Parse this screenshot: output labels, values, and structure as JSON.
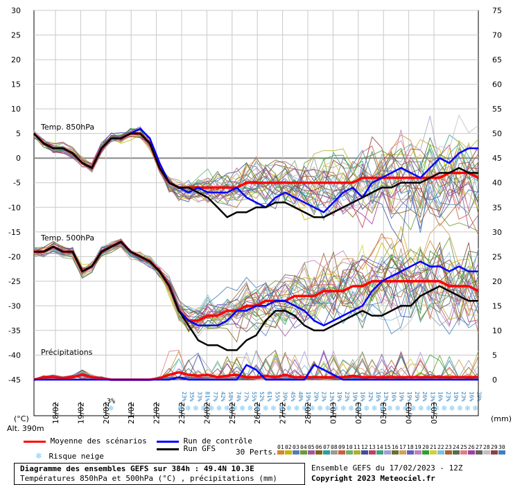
{
  "chart_data": {
    "type": "line",
    "title": "Diagramme des ensembles GEFS sur 384h : 49.4N 10.3E",
    "subtitle": "Températures 850hPa et 500hPa (°C) , précipitations (mm)",
    "left_axis": {
      "label": "(°C)",
      "ticks": [
        30,
        25,
        20,
        15,
        10,
        5,
        0,
        -5,
        -10,
        -15,
        -20,
        -25,
        -30,
        -35,
        -40,
        -45
      ],
      "range": [
        -45,
        30
      ]
    },
    "right_axis": {
      "label": "(mm)",
      "ticks": [
        75,
        70,
        65,
        60,
        55,
        50,
        45,
        40,
        35,
        30,
        25,
        20,
        15,
        10,
        5,
        0
      ],
      "range": [
        0,
        75
      ]
    },
    "altitude_label": "Alt. 390m",
    "x_labels": [
      "18/02",
      "19/02",
      "20/02",
      "21/02",
      "22/02",
      "23/02",
      "24/02",
      "25/02",
      "26/02",
      "27/02",
      "28/02",
      "01/03",
      "02/03",
      "03/03",
      "04/03",
      "05/03"
    ],
    "panel_labels": [
      "Temp. 850hPa",
      "Temp. 500hPa",
      "Précipitations"
    ],
    "series": [
      {
        "name": "Moyenne des scénarios (850hPa)",
        "color": "#ff0000",
        "values": [
          5,
          3,
          2,
          2,
          1,
          -1,
          -2,
          2,
          4,
          4,
          5,
          5,
          3,
          -2,
          -5,
          -6,
          -6,
          -6,
          -6,
          -6,
          -6,
          -6,
          -5,
          -5,
          -5,
          -5,
          -5,
          -5,
          -5,
          -5,
          -5,
          -5,
          -5,
          -5,
          -4,
          -4,
          -4,
          -4,
          -4,
          -4,
          -4,
          -4,
          -4,
          -3,
          -3,
          -3,
          -4
        ]
      },
      {
        "name": "Run de contrôle (850hPa)",
        "color": "#0000ff",
        "values": [
          5,
          3,
          2,
          2,
          1,
          -1,
          -2,
          2,
          4,
          4,
          5,
          6,
          4,
          -1,
          -5,
          -6,
          -7,
          -6,
          -7,
          -7,
          -7,
          -6,
          -8,
          -9,
          -10,
          -8,
          -7,
          -8,
          -9,
          -10,
          -11,
          -9,
          -7,
          -6,
          -8,
          -5,
          -4,
          -3,
          -2,
          -3,
          -4,
          -2,
          0,
          -1,
          1,
          2,
          2
        ]
      },
      {
        "name": "Run GFS (850hPa)",
        "color": "#000000",
        "values": [
          5,
          3,
          2,
          2,
          1,
          -1,
          -2,
          2,
          4,
          4,
          5,
          5,
          3,
          -2,
          -5,
          -6,
          -6,
          -7,
          -8,
          -10,
          -12,
          -11,
          -11,
          -10,
          -10,
          -9,
          -9,
          -10,
          -11,
          -12,
          -12,
          -11,
          -10,
          -9,
          -8,
          -7,
          -6,
          -6,
          -5,
          -5,
          -5,
          -4,
          -3,
          -3,
          -2,
          -3,
          -3
        ]
      },
      {
        "name": "Moyenne des scénarios (500hPa)",
        "color": "#ff0000",
        "values": [
          -19,
          -19,
          -18,
          -19,
          -19,
          -23,
          -22,
          -19,
          -18,
          -17,
          -19,
          -20,
          -21,
          -23,
          -26,
          -31,
          -33,
          -33,
          -32,
          -32,
          -31,
          -31,
          -30,
          -30,
          -29,
          -29,
          -29,
          -28,
          -28,
          -28,
          -27,
          -27,
          -27,
          -26,
          -26,
          -25,
          -25,
          -25,
          -25,
          -25,
          -25,
          -25,
          -25,
          -26,
          -26,
          -26,
          -27
        ]
      },
      {
        "name": "Run de contrôle (500hPa)",
        "color": "#0000ff",
        "values": [
          -19,
          -19,
          -18,
          -19,
          -19,
          -23,
          -22,
          -19,
          -18,
          -17,
          -19,
          -20,
          -21,
          -23,
          -26,
          -31,
          -33,
          -34,
          -34,
          -34,
          -33,
          -31,
          -31,
          -30,
          -30,
          -29,
          -29,
          -30,
          -31,
          -33,
          -34,
          -33,
          -32,
          -31,
          -30,
          -27,
          -25,
          -24,
          -23,
          -22,
          -21,
          -22,
          -22,
          -23,
          -22,
          -23,
          -23
        ]
      },
      {
        "name": "Run GFS (500hPa)",
        "color": "#000000",
        "values": [
          -19,
          -19,
          -18,
          -19,
          -19,
          -23,
          -22,
          -19,
          -18,
          -17,
          -19,
          -20,
          -21,
          -23,
          -26,
          -31,
          -34,
          -37,
          -38,
          -38,
          -39,
          -39,
          -37,
          -36,
          -33,
          -31,
          -31,
          -32,
          -34,
          -35,
          -35,
          -34,
          -33,
          -32,
          -31,
          -32,
          -32,
          -31,
          -30,
          -30,
          -28,
          -27,
          -26,
          -27,
          -28,
          -29,
          -29
        ]
      },
      {
        "name": "Moyenne des scénarios (précipitations)",
        "color": "#ff0000",
        "values": [
          0,
          0.5,
          0.5,
          0.3,
          0.5,
          1,
          0.5,
          0.3,
          0,
          0,
          0,
          0,
          0,
          0.3,
          1,
          1.5,
          1,
          0.8,
          1,
          0.5,
          0.8,
          1,
          0.5,
          0.5,
          0.8,
          0.5,
          1,
          0.5,
          0.5,
          0.5,
          0.5,
          0.5,
          0.5,
          0.8,
          0.5,
          0.5,
          0.5,
          0.5,
          0.5,
          0.5,
          0.5,
          0.5,
          0.5,
          0.5,
          0.5,
          0.5,
          0.5
        ]
      },
      {
        "name": "Run de contrôle (précipitations)",
        "color": "#0000ff",
        "values": [
          0,
          0,
          0,
          0,
          0,
          0,
          0,
          0,
          0,
          0,
          0,
          0,
          0,
          0,
          0,
          0.5,
          0,
          0,
          0,
          0,
          0,
          0,
          3,
          2,
          0,
          0,
          0,
          0,
          0,
          3,
          2,
          1,
          0,
          0,
          0,
          0,
          0,
          0,
          0,
          0,
          0,
          0,
          0,
          0,
          0,
          0,
          0
        ]
      }
    ],
    "snow_risk": {
      "20/02": "3%",
      "values": [
        "23%",
        "35%",
        "33%",
        "81%",
        "77%",
        "42%",
        "58%",
        "74%",
        "77%",
        "55%",
        "52%",
        "61%",
        "55%",
        "39%",
        "45%",
        "48%",
        "19%",
        "29%",
        "23%",
        "13%",
        "19%",
        "23%",
        "19%",
        "16%",
        "32%",
        "16%",
        "13%",
        "16%",
        "19%",
        "19%",
        "29%",
        "26%",
        "13%",
        "16%",
        "23%",
        "19%",
        "23%",
        "16%",
        "29%"
      ]
    }
  },
  "legend": {
    "mean": "Moyenne des scénarios",
    "control": "Run de contrôle",
    "gfs": "Run GFS",
    "snow": "Risque neige",
    "perts_label": "30 Perts.",
    "perts": [
      "01",
      "02",
      "03",
      "04",
      "05",
      "06",
      "07",
      "08",
      "09",
      "10",
      "11",
      "12",
      "13",
      "14",
      "15",
      "16",
      "17",
      "18",
      "19",
      "20",
      "21",
      "22",
      "23",
      "24",
      "25",
      "26",
      "27",
      "28",
      "29",
      "30"
    ],
    "pert_colors": [
      "#d08a2a",
      "#c8b400",
      "#5a7ab4",
      "#6a9a3a",
      "#a05a9a",
      "#806020",
      "#2aa0a0",
      "#9a9a9a",
      "#c86040",
      "#70b070",
      "#b0b030",
      "#4050a0",
      "#c04060",
      "#40a080",
      "#a0a0d0",
      "#707030",
      "#d0a060",
      "#6060c0",
      "#c080c0",
      "#30a030",
      "#d0d040",
      "#80c0e0",
      "#b06030",
      "#507050",
      "#e08080",
      "#a040a0",
      "#606060",
      "#c0c0c0",
      "#904040",
      "#4080c0"
    ]
  },
  "info": {
    "title": "Diagramme des ensembles GEFS sur 384h : 49.4N 10.3E",
    "subtitle": "Températures 850hPa et 500hPa (°C) , précipitations (mm)",
    "run": "Ensemble GEFS du 17/02/2023 - 12Z",
    "copyright": "Copyright 2023 Meteociel.fr"
  },
  "colors": {
    "grid": "#c8c8c8",
    "mean": "#ff0000",
    "control": "#0000ff",
    "gfs": "#000000",
    "snow": "#7ac6f0",
    "snow_text": "#2a7ab8"
  }
}
